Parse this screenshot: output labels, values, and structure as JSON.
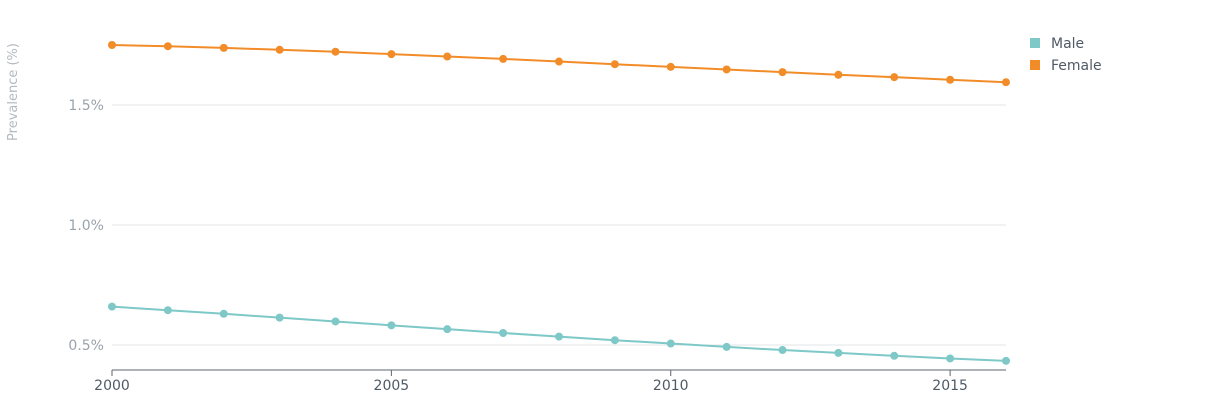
{
  "chart_data": {
    "type": "line",
    "ylabel": "Prevalence (%)",
    "xlabel": "",
    "x": [
      2000,
      2001,
      2002,
      2003,
      2004,
      2005,
      2006,
      2007,
      2008,
      2009,
      2010,
      2011,
      2012,
      2013,
      2014,
      2015,
      2016
    ],
    "x_ticks": [
      2000,
      2005,
      2010,
      2015
    ],
    "y_ticks": [
      0.5,
      1.0,
      1.5
    ],
    "y_tick_labels": [
      "0.5%",
      "1.0%",
      "1.5%"
    ],
    "ylim": [
      0.4,
      1.8
    ],
    "xlim": [
      2000,
      2016
    ],
    "legend_position": "top-right",
    "grid": "horizontal",
    "series": [
      {
        "name": "Male",
        "color": "#7ec8c8",
        "values": [
          0.66,
          0.645,
          0.63,
          0.614,
          0.598,
          0.582,
          0.566,
          0.55,
          0.535,
          0.52,
          0.506,
          0.492,
          0.479,
          0.467,
          0.455,
          0.444,
          0.434
        ]
      },
      {
        "name": "Female",
        "color": "#f28c28",
        "values": [
          1.75,
          1.745,
          1.738,
          1.73,
          1.722,
          1.712,
          1.702,
          1.692,
          1.681,
          1.67,
          1.659,
          1.648,
          1.637,
          1.626,
          1.616,
          1.605,
          1.595
        ]
      }
    ]
  }
}
